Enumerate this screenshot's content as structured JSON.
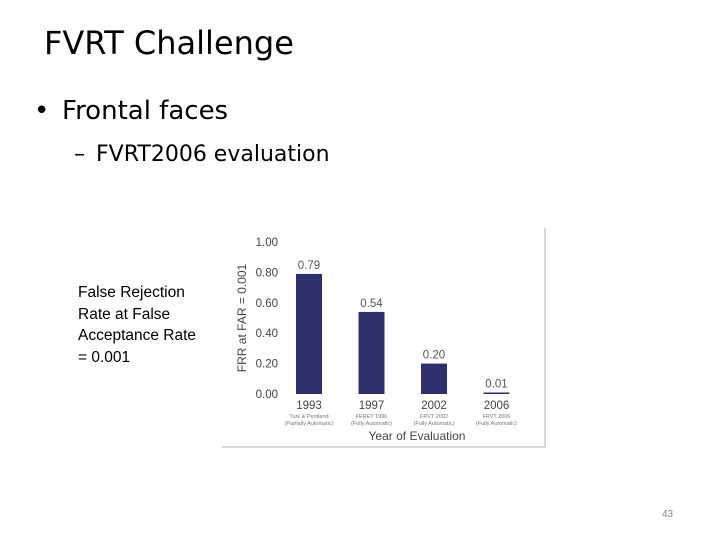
{
  "slide": {
    "title": "FVRT Challenge",
    "bullet": "Frontal faces",
    "sub_bullet": "FVRT2006 evaluation",
    "side_label": "False Rejection Rate at False Acceptance Rate = 0.001",
    "page_number": "43"
  },
  "chart_data": {
    "type": "bar",
    "categories": [
      "1993",
      "1997",
      "2002",
      "2006"
    ],
    "category_sublabels": [
      [
        "Turk & Pentland",
        "(Partially Automatic)"
      ],
      [
        "FERET 1996",
        "(Fully Automatic)"
      ],
      [
        "FRVT 2002",
        "(Fully Automatic)"
      ],
      [
        "FRVT 2006",
        "(Fully Automatic)"
      ]
    ],
    "values": [
      0.79,
      0.54,
      0.2,
      0.01
    ],
    "value_labels": [
      "0.79",
      "0.54",
      "0.20",
      "0.01"
    ],
    "y_ticks": [
      "0.00",
      "0.20",
      "0.40",
      "0.60",
      "0.80",
      "1.00"
    ],
    "ylim": [
      0,
      1.0
    ],
    "xlabel": "Year of Evaluation",
    "ylabel": "FRR at FAR = 0.001",
    "bar_color": "#2f2f6e",
    "grid": false
  }
}
